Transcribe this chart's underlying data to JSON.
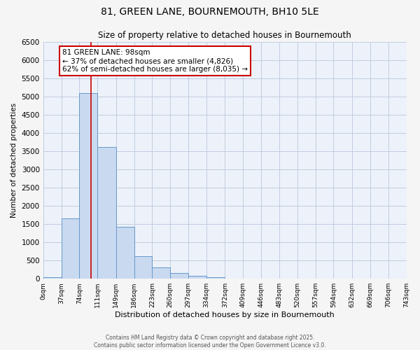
{
  "title": "81, GREEN LANE, BOURNEMOUTH, BH10 5LE",
  "subtitle": "Size of property relative to detached houses in Bournemouth",
  "xlabel": "Distribution of detached houses by size in Bournemouth",
  "ylabel": "Number of detached properties",
  "bin_edges": [
    0,
    37,
    74,
    111,
    149,
    186,
    223,
    260,
    297,
    334,
    372,
    409,
    446,
    483,
    520,
    557,
    594,
    632,
    669,
    706,
    743
  ],
  "bin_labels": [
    "0sqm",
    "37sqm",
    "74sqm",
    "111sqm",
    "149sqm",
    "186sqm",
    "223sqm",
    "260sqm",
    "297sqm",
    "334sqm",
    "372sqm",
    "409sqm",
    "446sqm",
    "483sqm",
    "520sqm",
    "557sqm",
    "594sqm",
    "632sqm",
    "669sqm",
    "706sqm",
    "743sqm"
  ],
  "bar_heights": [
    50,
    1650,
    5100,
    3620,
    1420,
    610,
    320,
    155,
    90,
    50,
    0,
    0,
    0,
    0,
    0,
    0,
    0,
    0,
    0,
    0
  ],
  "bar_color": "#c9d9f0",
  "bar_edge_color": "#6699cc",
  "ylim": [
    0,
    6500
  ],
  "yticks": [
    0,
    500,
    1000,
    1500,
    2000,
    2500,
    3000,
    3500,
    4000,
    4500,
    5000,
    5500,
    6000,
    6500
  ],
  "vline_x": 98,
  "vline_color": "#cc0000",
  "annotation_title": "81 GREEN LANE: 98sqm",
  "annotation_line1": "← 37% of detached houses are smaller (4,826)",
  "annotation_line2": "62% of semi-detached houses are larger (8,035) →",
  "annotation_box_color": "#ffffff",
  "annotation_box_edge": "#cc0000",
  "grid_color": "#c0cce0",
  "bg_color": "#edf2fa",
  "fig_color": "#f5f5f5",
  "footer1": "Contains HM Land Registry data © Crown copyright and database right 2025.",
  "footer2": "Contains public sector information licensed under the Open Government Licence v3.0."
}
